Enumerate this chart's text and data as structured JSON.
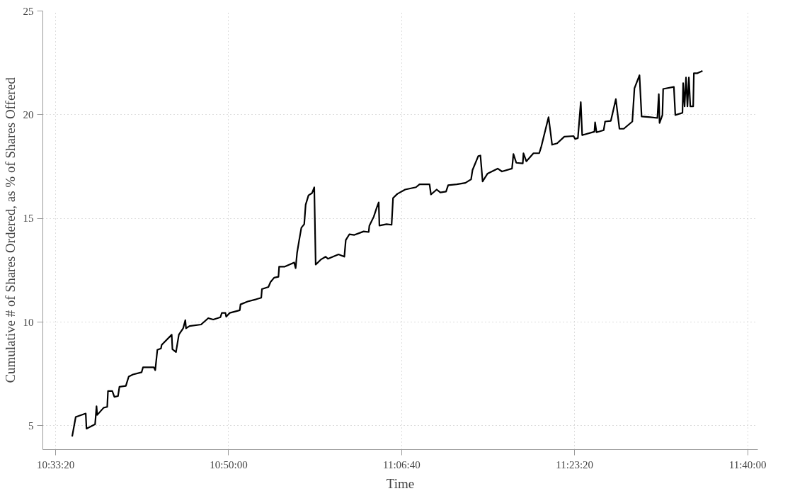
{
  "chart_data": {
    "type": "line",
    "xlabel": "Time",
    "ylabel": "Cumulative # of Shares Ordered, as % of Shares Offered",
    "xlim": [
      10.535,
      11.683
    ],
    "ylim": [
      3.85,
      25
    ],
    "xticks": [
      {
        "value": 10.555556,
        "label": "10:33:20"
      },
      {
        "value": 10.833333,
        "label": "10:50:00"
      },
      {
        "value": 11.111111,
        "label": "11:06:40"
      },
      {
        "value": 11.388889,
        "label": "11:23:20"
      },
      {
        "value": 11.666667,
        "label": "11:40:00"
      }
    ],
    "yticks": [
      5,
      10,
      15,
      20,
      25
    ],
    "grid": true,
    "marker": "none",
    "line_style": "solid",
    "series": [
      {
        "color": "#000000",
        "x": [
          10.5821,
          10.5878,
          10.6039,
          10.6051,
          10.6189,
          10.6212,
          10.6223,
          10.6327,
          10.6384,
          10.6396,
          10.6465,
          10.6499,
          10.6557,
          10.658,
          10.6683,
          10.6729,
          10.6798,
          10.6936,
          10.6959,
          10.7132,
          10.7155,
          10.7189,
          10.7247,
          10.7258,
          10.7419,
          10.7431,
          10.7488,
          10.7534,
          10.7603,
          10.7638,
          10.7649,
          10.7707,
          10.7891,
          10.8006,
          10.8086,
          10.8201,
          10.8224,
          10.8282,
          10.8294,
          10.8351,
          10.8512,
          10.8524,
          10.8639,
          10.8777,
          10.8857,
          10.8868,
          10.8972,
          10.9006,
          10.9064,
          10.9133,
          10.9144,
          10.9236,
          10.9386,
          10.9409,
          10.9432,
          10.9466,
          10.9501,
          10.9547,
          10.957,
          10.9616,
          10.9673,
          10.9708,
          10.9731,
          10.9812,
          10.9892,
          10.9927,
          11.0098,
          11.0191,
          11.0214,
          11.0271,
          11.0352,
          11.0501,
          11.0582,
          11.0593,
          11.0662,
          11.0708,
          11.0743,
          11.0754,
          11.0869,
          11.095,
          11.0973,
          11.1042,
          11.1168,
          11.1341,
          11.1398,
          11.1559,
          11.1582,
          11.1674,
          11.1732,
          11.1824,
          11.1858,
          11.1996,
          11.2134,
          11.2226,
          11.2249,
          11.2341,
          11.2376,
          11.2411,
          11.2491,
          11.2653,
          11.2722,
          11.2883,
          11.2906,
          11.2952,
          11.3056,
          11.3067,
          11.3113,
          11.3228,
          11.332,
          11.3355,
          11.347,
          11.3527,
          11.3608,
          11.3723,
          11.3872,
          11.3895,
          11.3941,
          11.3987,
          11.401,
          11.4206,
          11.4217,
          11.424,
          11.4355,
          11.4378,
          11.447,
          11.455,
          11.4608,
          11.4677,
          11.4815,
          11.4849,
          11.493,
          11.4964,
          11.5102,
          11.5217,
          11.524,
          11.5252,
          11.5298,
          11.531,
          11.5482,
          11.5505,
          11.562,
          11.5631,
          11.5654,
          11.5677,
          11.57,
          11.5723,
          11.5746,
          11.5792,
          11.5803,
          11.5861,
          11.5942
        ],
        "values": [
          4.48,
          5.42,
          5.59,
          4.86,
          5.07,
          5.94,
          5.52,
          5.87,
          5.91,
          6.67,
          6.67,
          6.39,
          6.43,
          6.88,
          6.92,
          7.37,
          7.47,
          7.58,
          7.82,
          7.82,
          7.68,
          8.66,
          8.73,
          8.9,
          9.39,
          8.69,
          8.55,
          9.39,
          9.7,
          10.09,
          9.7,
          9.81,
          9.88,
          10.19,
          10.12,
          10.23,
          10.44,
          10.44,
          10.26,
          10.44,
          10.57,
          10.85,
          10.99,
          11.1,
          11.17,
          11.59,
          11.69,
          11.93,
          12.14,
          12.18,
          12.67,
          12.67,
          12.87,
          12.6,
          13.33,
          13.95,
          14.55,
          14.72,
          15.66,
          16.11,
          16.22,
          16.5,
          12.77,
          13.01,
          13.15,
          13.05,
          13.26,
          13.15,
          13.95,
          14.23,
          14.2,
          14.37,
          14.34,
          14.65,
          15.07,
          15.49,
          15.77,
          14.65,
          14.72,
          14.69,
          15.98,
          16.18,
          16.39,
          16.5,
          16.64,
          16.64,
          16.15,
          16.39,
          16.25,
          16.29,
          16.6,
          16.64,
          16.71,
          16.88,
          17.33,
          18.0,
          18.03,
          16.78,
          17.16,
          17.4,
          17.26,
          17.4,
          18.1,
          17.68,
          17.65,
          18.14,
          17.75,
          18.14,
          18.14,
          18.48,
          19.88,
          18.55,
          18.62,
          18.94,
          18.97,
          18.83,
          18.87,
          20.61,
          19.01,
          19.18,
          19.63,
          19.15,
          19.25,
          19.67,
          19.7,
          20.75,
          19.32,
          19.32,
          19.67,
          21.27,
          21.9,
          19.91,
          19.88,
          19.84,
          20.99,
          19.6,
          19.98,
          21.24,
          21.34,
          19.98,
          20.09,
          21.52,
          20.4,
          21.79,
          20.4,
          21.79,
          20.4,
          20.4,
          22.0,
          22.0,
          22.11
        ]
      }
    ]
  }
}
